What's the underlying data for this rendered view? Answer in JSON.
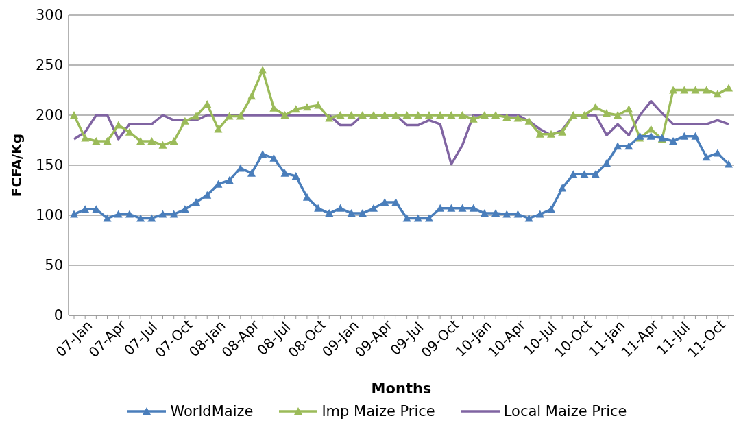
{
  "chart_data": {
    "type": "line",
    "xlabel": "Months",
    "ylabel": "FCFA/Kg",
    "categories": [
      "07-Jan",
      null,
      null,
      "07-Apr",
      null,
      null,
      "07-Jul",
      null,
      null,
      "07-Oct",
      null,
      null,
      "08-Jan",
      null,
      null,
      "08-Apr",
      null,
      null,
      "08-Jul",
      null,
      null,
      "08-Oct",
      null,
      null,
      "09-Jan",
      null,
      null,
      "09-Apr",
      null,
      null,
      "09-Jul",
      null,
      null,
      "09-Oct",
      null,
      null,
      "10-Jan",
      null,
      null,
      "10-Apr",
      null,
      null,
      "10-Jul",
      null,
      null,
      "10-Oct",
      null,
      null,
      "11-Jan",
      null,
      null,
      "11-Apr",
      null,
      null,
      "11-Jul",
      null,
      null,
      "11-Oct",
      null,
      null
    ],
    "series": [
      {
        "name": "WorldMaize",
        "color": "#4a7ebb",
        "marker": "triangle",
        "values": [
          101,
          106,
          106,
          97,
          101,
          101,
          97,
          97,
          101,
          101,
          106,
          113,
          120,
          131,
          135,
          147,
          142,
          161,
          157,
          142,
          139,
          118,
          107,
          102,
          107,
          102,
          102,
          107,
          113,
          113,
          97,
          97,
          97,
          107,
          107,
          107,
          107,
          102,
          102,
          101,
          101,
          97,
          101,
          106,
          127,
          141,
          141,
          141,
          152,
          169,
          169,
          179,
          179,
          177,
          174,
          179,
          179,
          158,
          162,
          151
        ]
      },
      {
        "name": "Imp Maize Price",
        "color": "#9bbb59",
        "marker": "triangle",
        "values": [
          200,
          177,
          174,
          174,
          190,
          183,
          174,
          174,
          170,
          174,
          194,
          199,
          211,
          186,
          199,
          199,
          219,
          245,
          207,
          200,
          206,
          208,
          210,
          197,
          200,
          200,
          200,
          200,
          200,
          200,
          200,
          200,
          200,
          200,
          200,
          200,
          196,
          200,
          200,
          198,
          197,
          194,
          181,
          181,
          183,
          200,
          200,
          208,
          202,
          200,
          206,
          177,
          186,
          176,
          225,
          225,
          225,
          225,
          221,
          227
        ]
      },
      {
        "name": "Local Maize Price",
        "color": "#8064a2",
        "marker": "none",
        "values": [
          176,
          183,
          200,
          200,
          176,
          191,
          191,
          191,
          200,
          195,
          195,
          195,
          200,
          200,
          200,
          200,
          200,
          200,
          200,
          200,
          200,
          200,
          200,
          200,
          190,
          190,
          200,
          200,
          200,
          200,
          190,
          190,
          195,
          191,
          151,
          170,
          200,
          200,
          200,
          200,
          200,
          194,
          186,
          180,
          185,
          200,
          200,
          200,
          180,
          191,
          180,
          200,
          214,
          202,
          191,
          191,
          191,
          191,
          195,
          191
        ]
      }
    ],
    "ylim": [
      0,
      300
    ],
    "yticks": [
      0,
      50,
      100,
      150,
      200,
      250,
      300
    ],
    "grid": "y",
    "legend": "bottom"
  }
}
